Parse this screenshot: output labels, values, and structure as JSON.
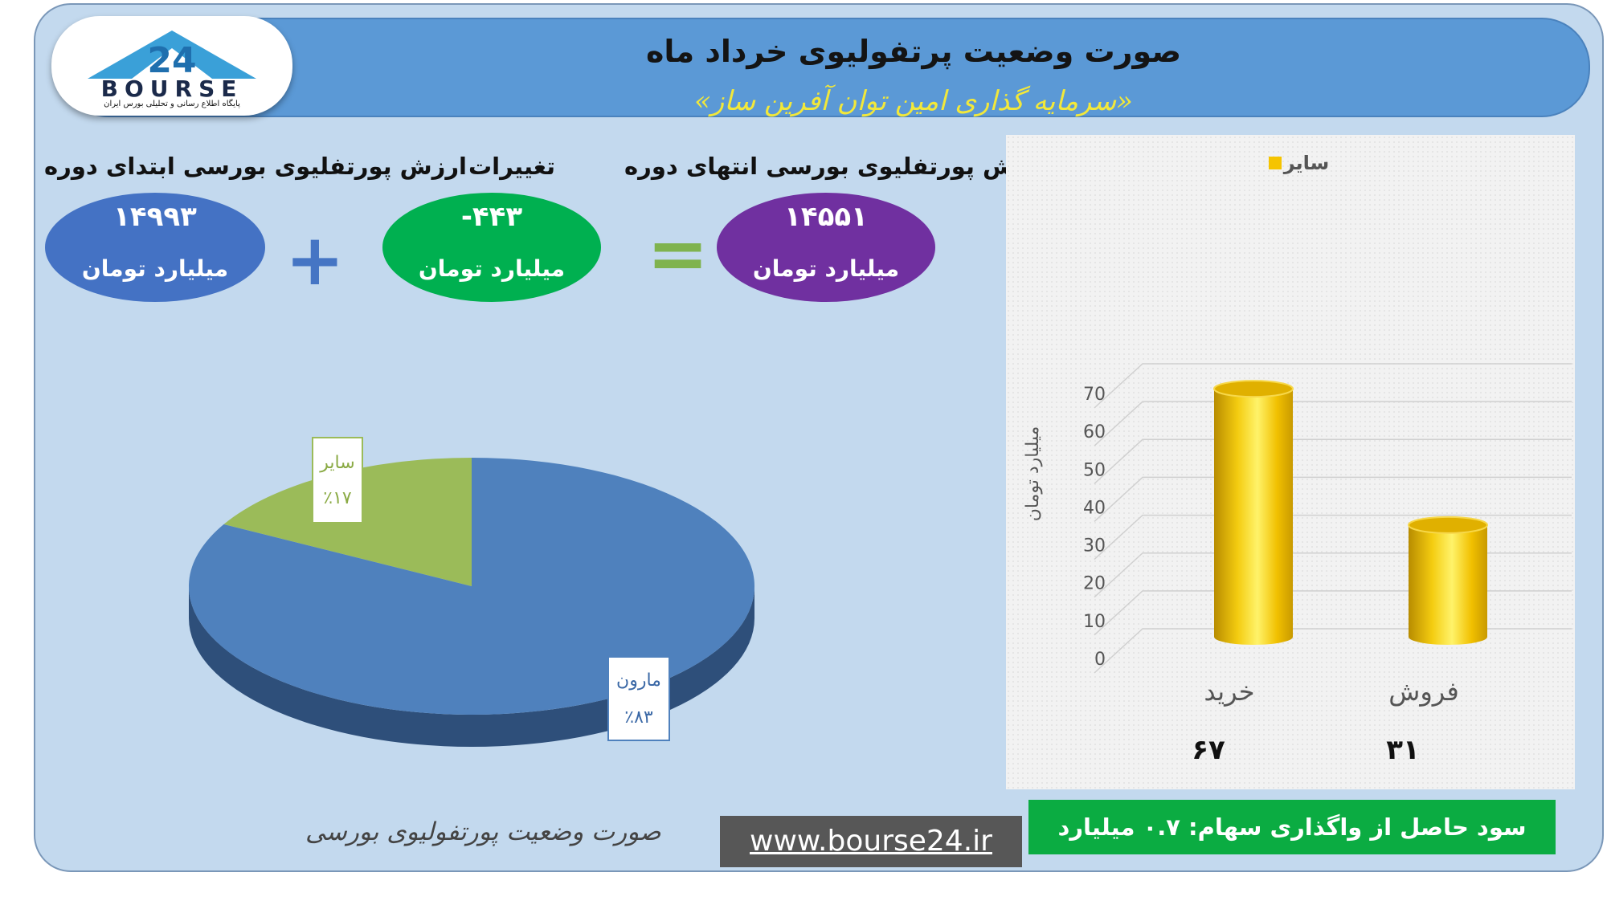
{
  "header": {
    "title": "صورت وضعیت پرتفولیوی خرداد ماه",
    "subtitle": "«سرمایه گذاری امین توان آفرین ساز»"
  },
  "logo": {
    "brand": "BOURSE",
    "number": "24",
    "tagline": "پایگاه اطلاع رسانی و تحلیلی بورس ایران"
  },
  "summary": {
    "start": {
      "label": "ارزش پورتفلیوی بورسی ابتدای دوره",
      "value": "۱۴۹۹۳",
      "unit": "میلیارد تومان",
      "color": "#4472c4"
    },
    "change": {
      "label": "تغییرات",
      "value": "-۴۴۳",
      "unit": "میلیارد تومان",
      "color": "#00b050"
    },
    "end": {
      "label": "ارزش پورتفلیوی بورسی انتهای دوره",
      "value": "۱۴۵۵۱",
      "unit": "میلیارد تومان",
      "color": "#7030a0"
    },
    "plus_sign": "+",
    "equals_sign": "="
  },
  "chart_data": [
    {
      "type": "pie",
      "slices": [
        {
          "label": "مارون",
          "value": 83,
          "display": "٪۸۳",
          "color": "#4f81bd"
        },
        {
          "label": "سایر",
          "value": 17,
          "display": "٪۱۷",
          "color": "#9bbb59"
        }
      ],
      "title": ""
    },
    {
      "type": "bar",
      "categories": [
        "خرید",
        "فروش"
      ],
      "values": [
        67,
        31
      ],
      "value_labels": [
        "۶۷",
        "۳۱"
      ],
      "series": [
        {
          "name": "سایر",
          "values": [
            67,
            31
          ],
          "color": "#f5c400"
        }
      ],
      "ylabel": "میلیارد تومان",
      "ylim": [
        0,
        70
      ],
      "yticks": [
        0,
        10,
        20,
        30,
        40,
        50,
        60,
        70
      ],
      "legend": "top",
      "grid": true
    }
  ],
  "footer": {
    "caption": "صورت وضعیت پورتفولیوی بورسی",
    "website": "www.bourse24.ir",
    "profit_note": "سود حاصل از واگذاری سهام: ۰.۷ میلیارد تومان"
  }
}
